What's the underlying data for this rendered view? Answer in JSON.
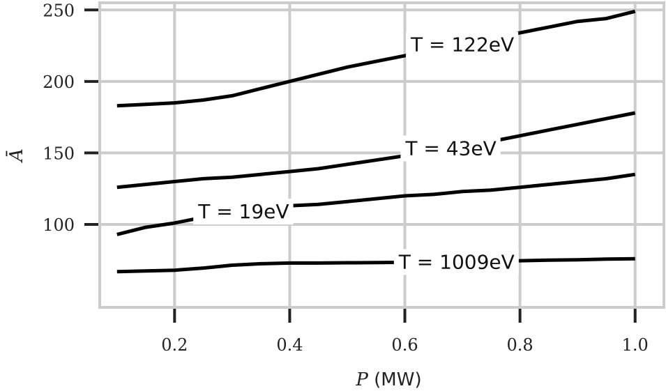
{
  "chart_data": {
    "type": "line",
    "xlabel_symbol": "P",
    "xlabel_unit": " (MW)",
    "ylabel": "Ā",
    "xlim": [
      0.07,
      1.05
    ],
    "ylim": [
      42,
      255
    ],
    "xticks": [
      0.2,
      0.4,
      0.6,
      0.8,
      1.0
    ],
    "xtick_labels": [
      "0.2",
      "0.4",
      "0.6",
      "0.8",
      "1.0"
    ],
    "yticks": [
      100,
      150,
      200,
      250
    ],
    "ytick_labels": [
      "100",
      "150",
      "200",
      "250"
    ],
    "grid": true,
    "legend": "none",
    "colors": {
      "line": "#000000",
      "grid": "#cccccc",
      "frame": "#cccccc",
      "tick": "#222222"
    },
    "series": [
      {
        "label": "T = 122eV",
        "label_x": 0.7,
        "x": [
          0.1,
          0.15,
          0.2,
          0.25,
          0.3,
          0.35,
          0.4,
          0.45,
          0.5,
          0.55,
          0.6,
          0.65,
          0.7,
          0.75,
          0.8,
          0.85,
          0.9,
          0.95,
          1.0
        ],
        "values": [
          183,
          184,
          185,
          187,
          190,
          195,
          200,
          205,
          210,
          214,
          218,
          222,
          226,
          230,
          234,
          238,
          242,
          244,
          249
        ]
      },
      {
        "label": "T = 43eV",
        "label_x": 0.68,
        "x": [
          0.1,
          0.15,
          0.2,
          0.25,
          0.3,
          0.35,
          0.4,
          0.45,
          0.5,
          0.55,
          0.6,
          0.65,
          0.7,
          0.75,
          0.8,
          0.85,
          0.9,
          0.95,
          1.0
        ],
        "values": [
          126,
          128,
          130,
          132,
          133,
          135,
          137,
          139,
          142,
          145,
          148,
          151,
          155,
          158,
          162,
          166,
          170,
          174,
          178
        ]
      },
      {
        "label": "T = 19eV",
        "label_x": 0.32,
        "x": [
          0.1,
          0.15,
          0.2,
          0.25,
          0.3,
          0.35,
          0.4,
          0.45,
          0.5,
          0.55,
          0.6,
          0.65,
          0.7,
          0.75,
          0.8,
          0.85,
          0.9,
          0.95,
          1.0
        ],
        "values": [
          93,
          98,
          101,
          105,
          108,
          111,
          113,
          114,
          116,
          118,
          120,
          121,
          123,
          124,
          126,
          128,
          130,
          132,
          135
        ]
      },
      {
        "label": "T = 1009eV",
        "label_x": 0.69,
        "x": [
          0.1,
          0.15,
          0.2,
          0.25,
          0.3,
          0.35,
          0.4,
          0.45,
          0.5,
          0.55,
          0.6,
          0.65,
          0.7,
          0.75,
          0.8,
          0.85,
          0.9,
          0.95,
          1.0
        ],
        "values": [
          67,
          67.5,
          68,
          69.5,
          71.5,
          72.5,
          73,
          73,
          73.2,
          73.3,
          73.5,
          73.8,
          74,
          74.3,
          74.6,
          75,
          75.3,
          75.8,
          76
        ]
      }
    ]
  }
}
